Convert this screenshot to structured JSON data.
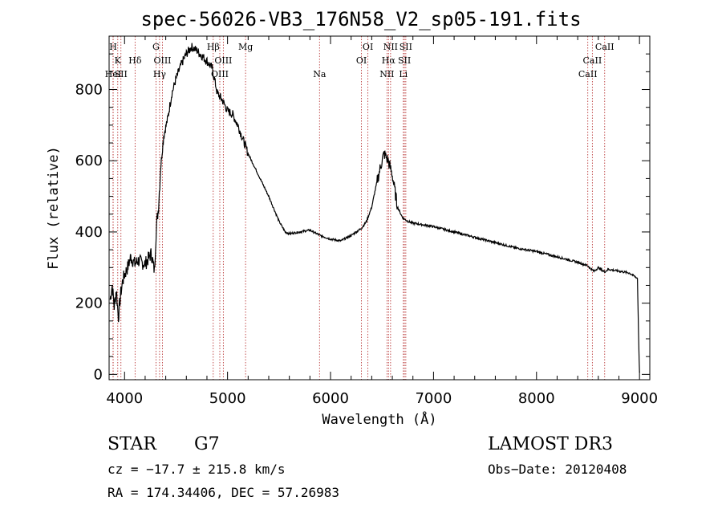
{
  "chart_data": {
    "type": "line",
    "title": "spec-56026-VB3_176N58_V2_sp05-191.fits",
    "xlabel": "Wavelength (Å)",
    "ylabel": "Flux (relative)",
    "xlim": [
      3850,
      9100
    ],
    "ylim": [
      -15,
      950
    ],
    "x_ticks": [
      4000,
      5000,
      6000,
      7000,
      8000,
      9000
    ],
    "y_ticks": [
      0,
      200,
      400,
      600,
      800
    ],
    "x_tick_labels": [
      "4000",
      "5000",
      "6000",
      "7000",
      "8000",
      "9000"
    ],
    "y_tick_labels": [
      "0",
      "200",
      "400",
      "600",
      "800"
    ],
    "series": [
      {
        "name": "spectrum",
        "x": [
          3860,
          3880,
          3900,
          3920,
          3940,
          3960,
          3980,
          4000,
          4030,
          4060,
          4100,
          4130,
          4160,
          4200,
          4230,
          4260,
          4290,
          4310,
          4330,
          4350,
          4380,
          4420,
          4460,
          4500,
          4550,
          4600,
          4650,
          4700,
          4750,
          4800,
          4850,
          4880,
          4900,
          4950,
          5000,
          5050,
          5100,
          5150,
          5200,
          5300,
          5400,
          5500,
          5560,
          5600,
          5700,
          5800,
          5900,
          6000,
          6100,
          6200,
          6300,
          6350,
          6400,
          6450,
          6500,
          6520,
          6540,
          6560,
          6580,
          6600,
          6650,
          6700,
          6750,
          6800,
          6900,
          7000,
          7200,
          7400,
          7600,
          7800,
          8000,
          8200,
          8400,
          8500,
          8520,
          8560,
          8600,
          8660,
          8700,
          8800,
          8900,
          8980,
          8990,
          9000
        ],
        "y": [
          210,
          250,
          190,
          240,
          160,
          220,
          260,
          280,
          300,
          330,
          310,
          320,
          315,
          310,
          325,
          340,
          290,
          420,
          470,
          580,
          670,
          720,
          790,
          830,
          870,
          900,
          920,
          910,
          895,
          880,
          860,
          820,
          790,
          770,
          740,
          730,
          700,
          660,
          620,
          560,
          500,
          430,
          400,
          395,
          400,
          405,
          390,
          380,
          375,
          390,
          410,
          430,
          470,
          540,
          600,
          620,
          610,
          600,
          580,
          560,
          470,
          440,
          430,
          425,
          420,
          415,
          400,
          385,
          370,
          355,
          345,
          330,
          315,
          305,
          298,
          290,
          300,
          288,
          295,
          290,
          285,
          270,
          120,
          5
        ]
      }
    ],
    "line_markers": [
      {
        "x": 3889,
        "label": "H",
        "row": 0
      },
      {
        "x": 3934,
        "label": "K",
        "row": 1
      },
      {
        "x": 3889,
        "label": "HeI",
        "row": 2
      },
      {
        "x": 3965,
        "label": "SII",
        "row": 2
      },
      {
        "x": 4102,
        "label": "Hδ",
        "row": 1
      },
      {
        "x": 4305,
        "label": "G",
        "row": 0
      },
      {
        "x": 4340,
        "label": "Hγ",
        "row": 2
      },
      {
        "x": 4368,
        "label": "OIII",
        "row": 1
      },
      {
        "x": 4861,
        "label": "Hβ",
        "row": 0
      },
      {
        "x": 4959,
        "label": "OIII",
        "row": 1
      },
      {
        "x": 4925,
        "label": "OIII",
        "row": 2
      },
      {
        "x": 5175,
        "label": "Mg",
        "row": 0
      },
      {
        "x": 5893,
        "label": "Na",
        "row": 2
      },
      {
        "x": 6300,
        "label": "OI",
        "row": 1
      },
      {
        "x": 6363,
        "label": "OI",
        "row": 0
      },
      {
        "x": 6548,
        "label": "NII",
        "row": 2
      },
      {
        "x": 6563,
        "label": "Hα",
        "row": 1
      },
      {
        "x": 6583,
        "label": "NII",
        "row": 0
      },
      {
        "x": 6707,
        "label": "Li",
        "row": 2
      },
      {
        "x": 6717,
        "label": "SII",
        "row": 1
      },
      {
        "x": 6731,
        "label": "SII",
        "row": 0
      },
      {
        "x": 8498,
        "label": "CaII",
        "row": 2
      },
      {
        "x": 8542,
        "label": "CaII",
        "row": 1
      },
      {
        "x": 8662,
        "label": "CaII",
        "row": 0
      }
    ]
  },
  "info": {
    "object_class": "STAR",
    "subclass": "G7",
    "survey": "LAMOST DR3",
    "cz": "cz = −17.7 ± 215.8 km/s",
    "obs_date": "Obs−Date: 20120408",
    "coords": "RA = 174.34406, DEC =  57.26983"
  },
  "colors": {
    "axis": "#000000",
    "marker_line": "#b22222",
    "background": "#ffffff"
  }
}
